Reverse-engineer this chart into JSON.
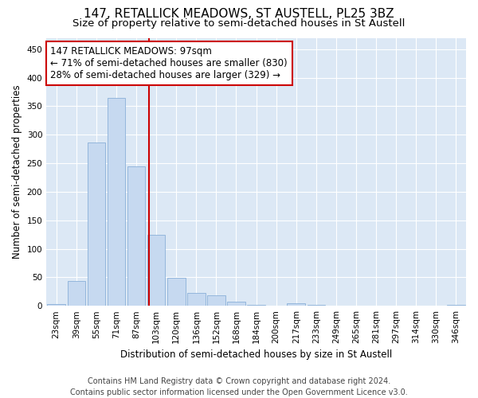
{
  "title": "147, RETALLICK MEADOWS, ST AUSTELL, PL25 3BZ",
  "subtitle": "Size of property relative to semi-detached houses in St Austell",
  "xlabel": "Distribution of semi-detached houses by size in St Austell",
  "ylabel": "Number of semi-detached properties",
  "categories": [
    "23sqm",
    "39sqm",
    "55sqm",
    "71sqm",
    "87sqm",
    "103sqm",
    "120sqm",
    "136sqm",
    "152sqm",
    "168sqm",
    "184sqm",
    "200sqm",
    "217sqm",
    "233sqm",
    "249sqm",
    "265sqm",
    "281sqm",
    "297sqm",
    "314sqm",
    "330sqm",
    "346sqm"
  ],
  "values": [
    3,
    44,
    287,
    365,
    244,
    124,
    49,
    22,
    18,
    7,
    1,
    0,
    5,
    1,
    0,
    0,
    0,
    0,
    0,
    0,
    1
  ],
  "bar_color": "#c6d9f0",
  "bar_edge_color": "#8ab0d8",
  "vline_color": "#cc0000",
  "annotation_text": "147 RETALLICK MEADOWS: 97sqm\n← 71% of semi-detached houses are smaller (830)\n28% of semi-detached houses are larger (329) →",
  "annotation_box_color": "#ffffff",
  "annotation_box_edge": "#cc0000",
  "ylim": [
    0,
    470
  ],
  "yticks": [
    0,
    50,
    100,
    150,
    200,
    250,
    300,
    350,
    400,
    450
  ],
  "footer_line1": "Contains HM Land Registry data © Crown copyright and database right 2024.",
  "footer_line2": "Contains public sector information licensed under the Open Government Licence v3.0.",
  "fig_bg_color": "#ffffff",
  "plot_bg_color": "#dce8f5",
  "title_fontsize": 11,
  "subtitle_fontsize": 9.5,
  "axis_label_fontsize": 8.5,
  "tick_fontsize": 7.5,
  "footer_fontsize": 7,
  "annot_fontsize": 8.5,
  "vline_x_idx": 4.62
}
